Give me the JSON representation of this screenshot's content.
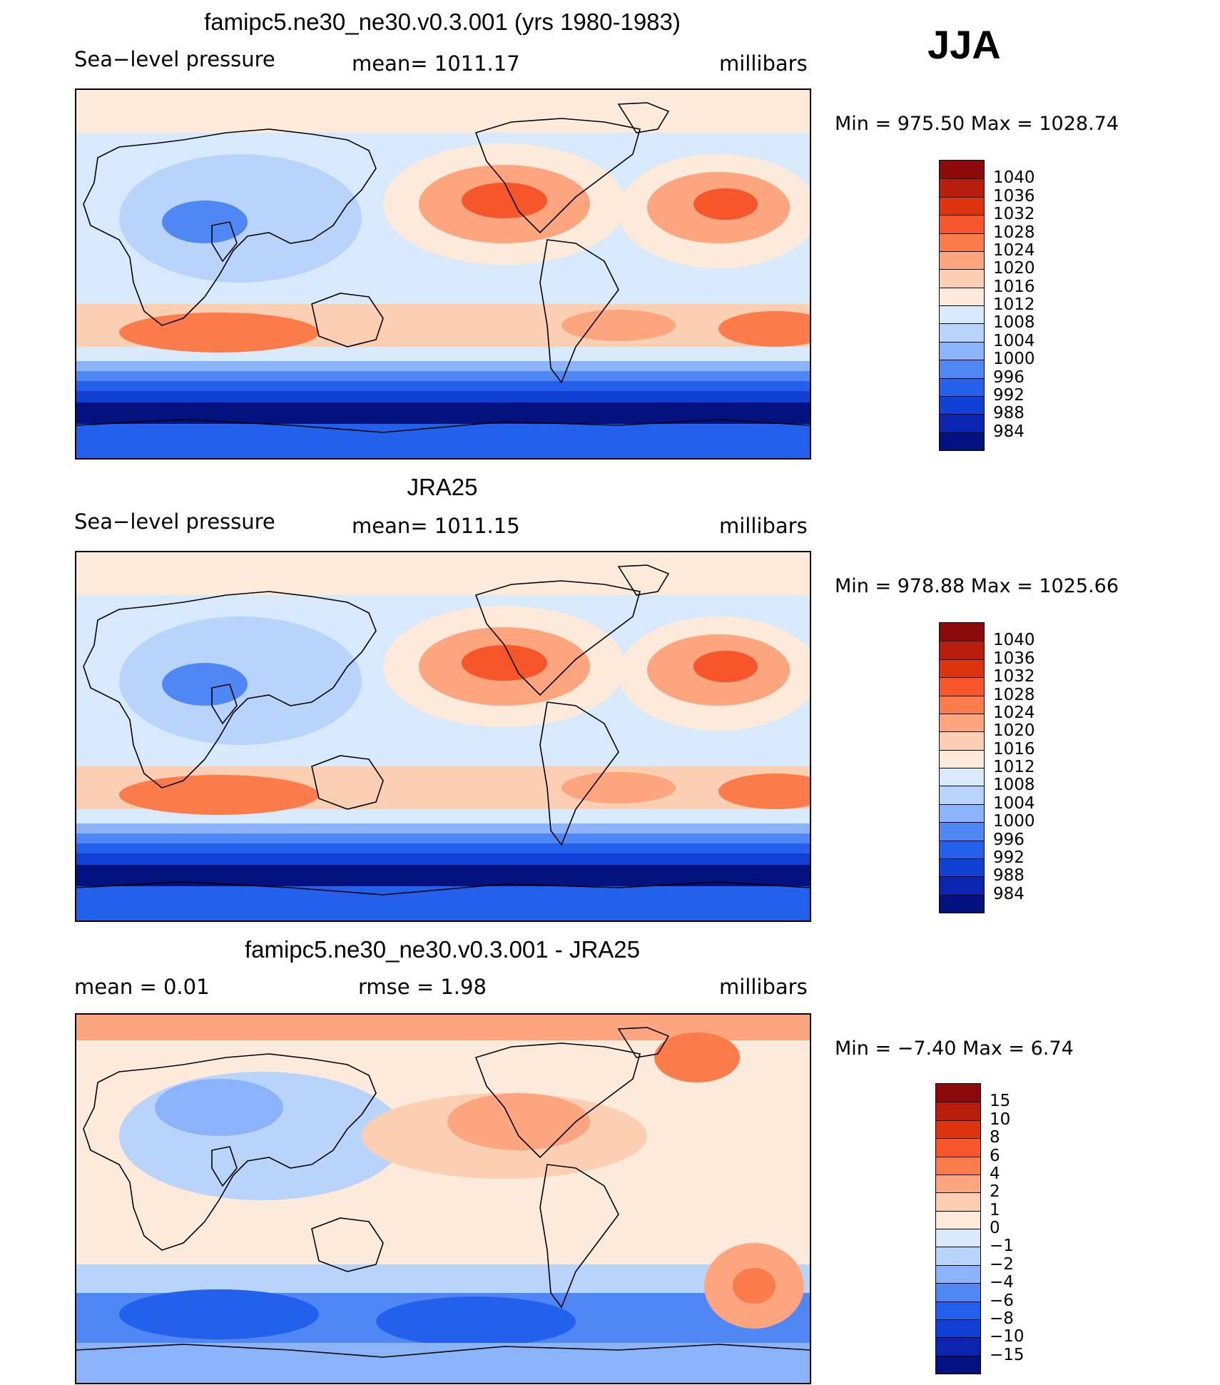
{
  "season": "JJA",
  "panels": [
    {
      "title": "famipc5.ne30_ne30.v0.3.001 (yrs 1980-1983)",
      "left_label": "Sea−level  pressure",
      "center_label": "mean=  1011.17",
      "right_label": "millibars",
      "minmax": "Min  =  975.50  Max  =  1028.74",
      "type": "field",
      "colorbar_levels": [
        "1040",
        "1036",
        "1032",
        "1028",
        "1024",
        "1020",
        "1016",
        "1012",
        "1008",
        "1004",
        "1000",
        "996",
        "992",
        "988",
        "984"
      ],
      "colorbar_colors": [
        "#8c0a0a",
        "#b81e0b",
        "#dd330e",
        "#f7562a",
        "#fb7c4b",
        "#fca57e",
        "#fdcfb2",
        "#feeadb",
        "#d8e9fb",
        "#b9d4fb",
        "#8ab3fa",
        "#4f87f5",
        "#2360ec",
        "#1140d4",
        "#0a26b0",
        "#03127e"
      ]
    },
    {
      "title": "JRA25",
      "left_label": "Sea−level  pressure",
      "center_label": "mean=  1011.15",
      "right_label": "millibars",
      "minmax": "Min  =  978.88  Max  =  1025.66",
      "type": "field",
      "colorbar_levels": [
        "1040",
        "1036",
        "1032",
        "1028",
        "1024",
        "1020",
        "1016",
        "1012",
        "1008",
        "1004",
        "1000",
        "996",
        "992",
        "988",
        "984"
      ],
      "colorbar_colors": [
        "#8c0a0a",
        "#b81e0b",
        "#dd330e",
        "#f7562a",
        "#fb7c4b",
        "#fca57e",
        "#fdcfb2",
        "#feeadb",
        "#d8e9fb",
        "#b9d4fb",
        "#8ab3fa",
        "#4f87f5",
        "#2360ec",
        "#1140d4",
        "#0a26b0",
        "#03127e"
      ]
    },
    {
      "title": "famipc5.ne30_ne30.v0.3.001 - JRA25",
      "left_label": "mean  =     0.01",
      "center_label": "rmse  =     1.98",
      "right_label": "millibars",
      "minmax": "Min  =   −7.40  Max  =      6.74",
      "type": "diff",
      "colorbar_levels": [
        "15",
        "10",
        "8",
        "6",
        "4",
        "2",
        "1",
        "0",
        "−1",
        "−2",
        "−4",
        "−6",
        "−8",
        "−10",
        "−15"
      ],
      "colorbar_colors": [
        "#8c0a0a",
        "#b81e0b",
        "#dd330e",
        "#f7562a",
        "#fb7c4b",
        "#fca57e",
        "#fdcfb2",
        "#feeadb",
        "#d8e9fb",
        "#b9d4fb",
        "#8ab3fa",
        "#4f87f5",
        "#2360ec",
        "#1140d4",
        "#0a26b0",
        "#03127e"
      ]
    }
  ]
}
